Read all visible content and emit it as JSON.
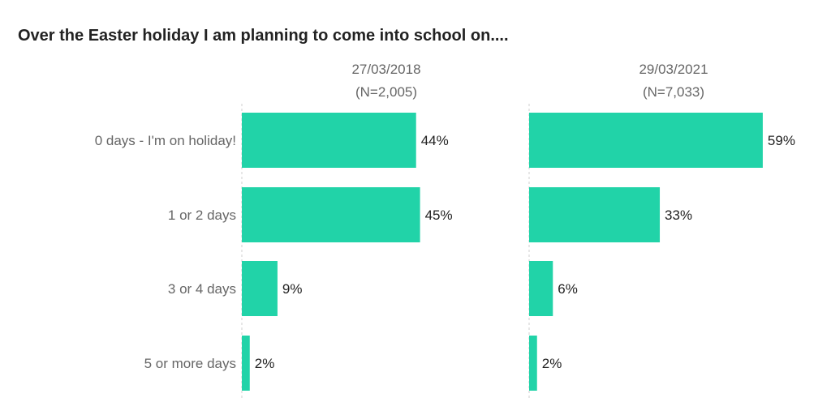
{
  "chart_data": {
    "type": "bar",
    "orientation": "horizontal",
    "title": "Over the Easter holiday I am planning to come into school on....",
    "categories": [
      "0 days - I'm on holiday!",
      "1 or 2 days",
      "3 or 4 days",
      "5 or more days"
    ],
    "series": [
      {
        "name": "27/03/2018",
        "subtitle": "(N=2,005)",
        "values": [
          44,
          45,
          9,
          2
        ],
        "labels": [
          "44%",
          "45%",
          "9%",
          "2%"
        ]
      },
      {
        "name": "29/03/2021",
        "subtitle": "(N=7,033)",
        "values": [
          59,
          33,
          6,
          2
        ],
        "labels": [
          "59%",
          "33%",
          "6%",
          "2%"
        ]
      }
    ],
    "xlim": [
      0,
      100
    ],
    "unit": "%",
    "grid": false,
    "bar_color": "#21d3a8"
  }
}
